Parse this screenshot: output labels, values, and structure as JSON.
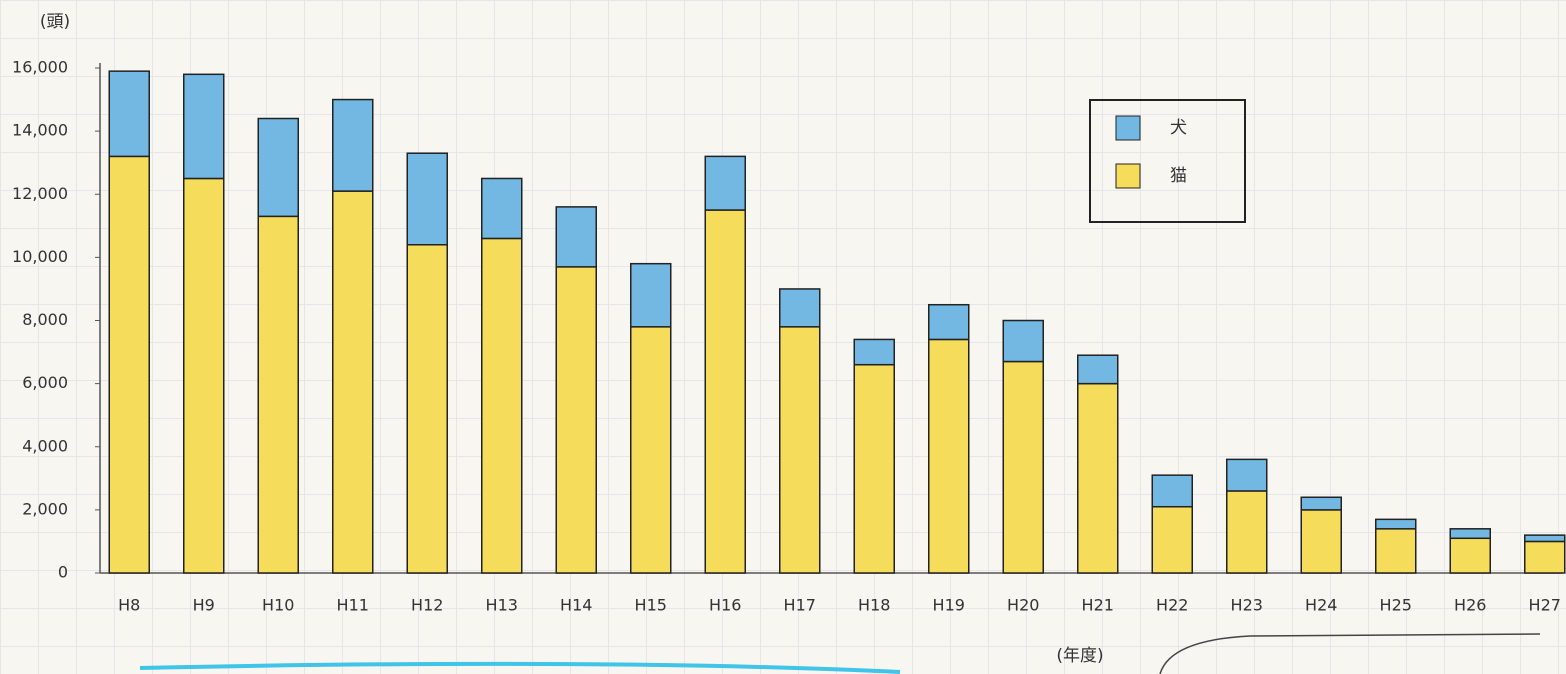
{
  "chart_data": {
    "type": "stacked_bar",
    "y_label": "(頭)",
    "x_label": "(年度)",
    "categories": [
      "H8",
      "H9",
      "H10",
      "H11",
      "H12",
      "H13",
      "H14",
      "H15",
      "H16",
      "H17",
      "H18",
      "H19",
      "H20",
      "H21",
      "H22",
      "H23",
      "H24",
      "H25",
      "H26",
      "H27"
    ],
    "series": [
      {
        "name": "猫",
        "color": "#f5dc5a",
        "values": [
          13200,
          12500,
          11300,
          12100,
          10400,
          10600,
          9700,
          7800,
          11500,
          7800,
          6600,
          7400,
          6700,
          6000,
          2100,
          2600,
          2000,
          1400,
          1100,
          1000
        ]
      },
      {
        "name": "犬",
        "color": "#72b8e2",
        "values": [
          2700,
          3300,
          3100,
          2900,
          2900,
          1900,
          1900,
          2000,
          1700,
          1200,
          800,
          1100,
          1300,
          900,
          1000,
          1000,
          400,
          300,
          300,
          200
        ]
      }
    ],
    "ylim": [
      0,
      16000
    ],
    "yticks": [
      0,
      {
        "value": 2000,
        "label": "2,000"
      },
      {
        "value": 4000,
        "label": "4,000"
      },
      {
        "value": 6000,
        "label": "6,000"
      },
      {
        "value": 8000,
        "label": "8,000"
      },
      {
        "value": 10000,
        "label": "10,000"
      },
      {
        "value": 12000,
        "label": "12,000"
      },
      {
        "value": 14000,
        "label": "14,000"
      },
      {
        "value": 16000,
        "label": "16,000"
      }
    ],
    "legend": "upper right"
  }
}
